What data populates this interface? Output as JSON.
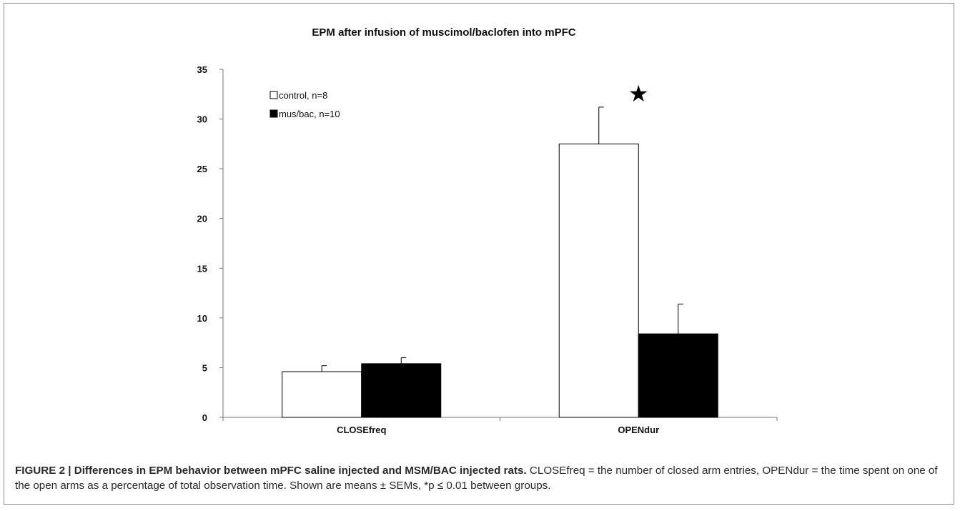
{
  "chart_data": {
    "type": "bar",
    "title": "EPM after infusion of muscimol/baclofen into mPFC",
    "categories": [
      "CLOSEfreq",
      "OPENdur"
    ],
    "series": [
      {
        "name": "control, n=8",
        "values": [
          4.6,
          27.5
        ],
        "errors": [
          0.6,
          3.7
        ],
        "color": "#ffffff"
      },
      {
        "name": "mus/bac, n=10",
        "values": [
          5.4,
          8.4
        ],
        "errors": [
          0.6,
          3.0
        ],
        "color": "#000000"
      }
    ],
    "ylim": [
      0,
      35
    ],
    "yticks": [
      "0",
      "5",
      "10",
      "15",
      "20",
      "25",
      "30",
      "35"
    ],
    "ytick_values": [
      0,
      5,
      10,
      15,
      20,
      25,
      30,
      35
    ],
    "xlabel": "",
    "ylabel": "",
    "legend_position": "top-left",
    "grid": false,
    "annotations": [
      {
        "text": "★",
        "category": "OPENdur",
        "y": 32.5
      }
    ]
  },
  "caption": {
    "lead": "FIGURE 2 | Differences in EPM behavior between mPFC saline injected and MSM/BAC injected rats.",
    "body": " CLOSEfreq = the number of closed arm entries, OPENdur = the time spent on one of the open arms as a percentage of total observation time. Shown are means ± SEMs, *p ≤ 0.01 between groups."
  }
}
